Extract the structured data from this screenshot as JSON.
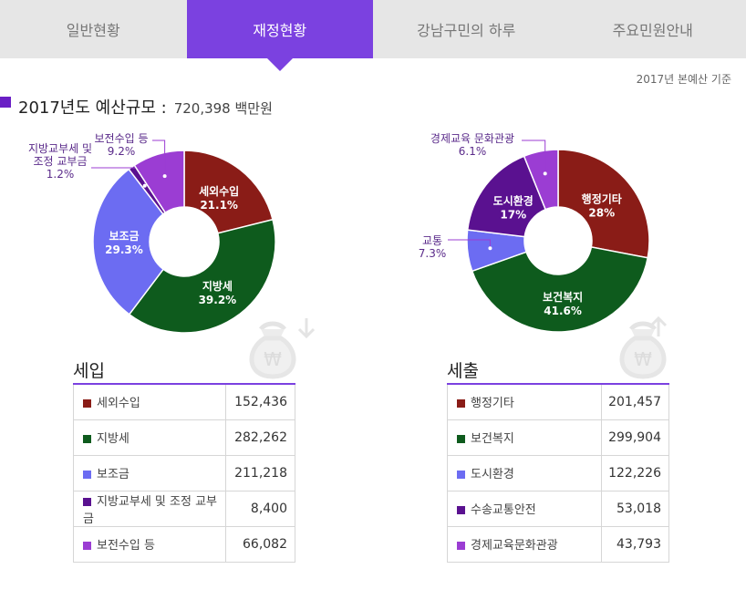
{
  "tabs": [
    {
      "label": "일반현황",
      "active": false
    },
    {
      "label": "재정현황",
      "active": true
    },
    {
      "label": "강남구민의 하루",
      "active": false
    },
    {
      "label": "주요민원안내",
      "active": false
    }
  ],
  "basis": "2017년 본예산 기준",
  "summary": {
    "title": "2017년도 예산규모 :",
    "value": "720,398 백만원"
  },
  "chart_data": [
    {
      "type": "pie",
      "categories": [
        "세외수입",
        "지방세",
        "보조금",
        "지방교부세 및 조정 교부금",
        "보전수입 등"
      ],
      "values": [
        21.1,
        39.2,
        29.3,
        1.2,
        9.2
      ],
      "colors": [
        "#8a1c17",
        "#0e5b1d",
        "#6c6cf2",
        "#5a1190",
        "#9b3dd3"
      ],
      "labels": [
        "세외수입",
        "지방세",
        "보조금",
        "지방교부세 및\n조정 교부금",
        "보전수입 등"
      ],
      "value_labels": [
        "21.1%",
        "39.2%",
        "29.3%",
        "1.2%",
        "9.2%"
      ]
    },
    {
      "type": "pie",
      "categories": [
        "행정기타",
        "보건복지",
        "교통",
        "도시환경",
        "경제교육 문화관광"
      ],
      "values": [
        28,
        41.6,
        7.3,
        17,
        6.1
      ],
      "colors": [
        "#8a1c17",
        "#0e5b1d",
        "#6c6cf2",
        "#5a1190",
        "#9b3dd3"
      ],
      "labels": [
        "행정기타",
        "보건복지",
        "교통",
        "도시환경",
        "경제교육 문화관광"
      ],
      "value_labels": [
        "28%",
        "41.6%",
        "7.3%",
        "17%",
        "6.1%"
      ]
    }
  ],
  "revenue": {
    "title": "세입",
    "rows": [
      {
        "name": "세외수입",
        "value": "152,436",
        "color": "#8a1c17"
      },
      {
        "name": "지방세",
        "value": "282,262",
        "color": "#0e5b1d"
      },
      {
        "name": "보조금",
        "value": "211,218",
        "color": "#6c6cf2"
      },
      {
        "name": "지방교부세 및 조정 교부금",
        "value": "8,400",
        "color": "#5a1190"
      },
      {
        "name": "보전수입 등",
        "value": "66,082",
        "color": "#9b3dd3"
      }
    ]
  },
  "expenditure": {
    "title": "세출",
    "rows": [
      {
        "name": "행정기타",
        "value": "201,457",
        "color": "#8a1c17"
      },
      {
        "name": "보건복지",
        "value": "299,904",
        "color": "#0e5b1d"
      },
      {
        "name": "도시환경",
        "value": "122,226",
        "color": "#6c6cf2"
      },
      {
        "name": "수송교통안전",
        "value": "53,018",
        "color": "#5a1190"
      },
      {
        "name": "경제교육문화관광",
        "value": "43,793",
        "color": "#9b3dd3"
      }
    ]
  }
}
